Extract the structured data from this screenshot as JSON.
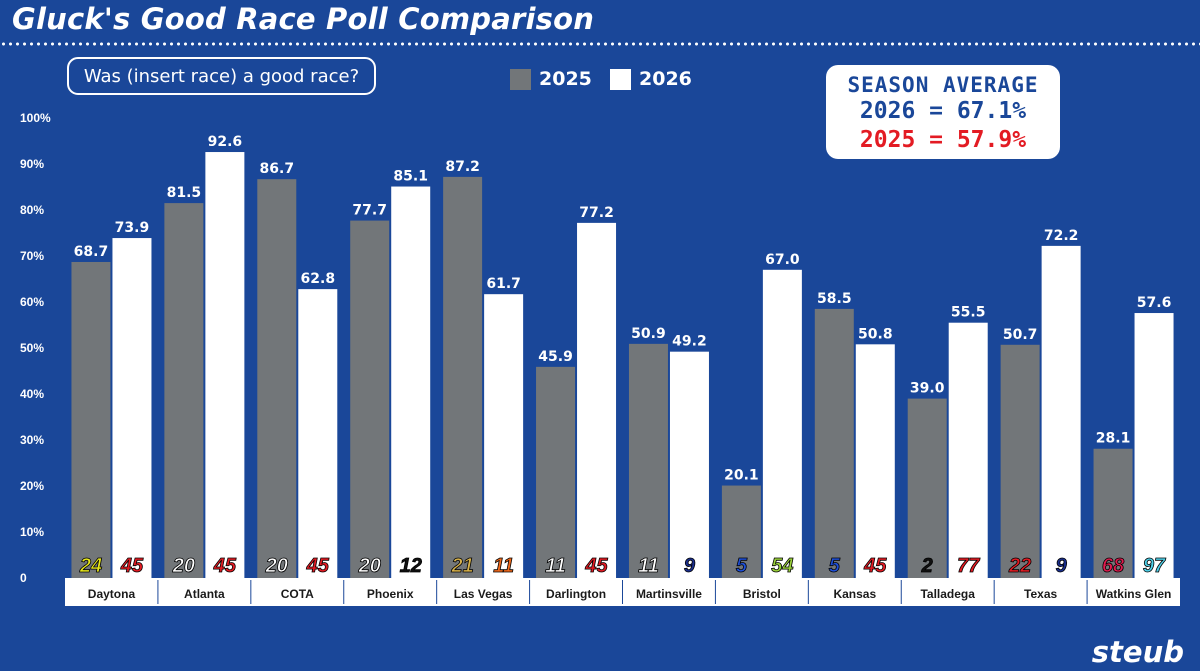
{
  "header": {
    "title": "Gluck's Good Race Poll Comparison"
  },
  "question": "Was (insert race) a good race?",
  "legend": [
    {
      "name": "2025",
      "color": "#727679"
    },
    {
      "name": "2026",
      "color": "#ffffff"
    }
  ],
  "season_average": {
    "heading": "SEASON AVERAGE",
    "line_2026": "2026 = 67.1%",
    "line_2025": "2025 = 57.9%",
    "color_2026": "#1a4799",
    "color_2025": "#e31b23"
  },
  "brand": "steub",
  "chart_data": {
    "type": "bar",
    "title": "Gluck's Good Race Poll Comparison",
    "ylim": [
      0,
      100
    ],
    "yticks": [
      "0",
      "10%",
      "20%",
      "30%",
      "40%",
      "50%",
      "60%",
      "70%",
      "80%",
      "90%",
      "100%"
    ],
    "categories": [
      "Daytona",
      "Atlanta",
      "COTA",
      "Phoenix",
      "Las Vegas",
      "Darlington",
      "Martinsville",
      "Bristol",
      "Kansas",
      "Talladega",
      "Texas",
      "Watkins Glen"
    ],
    "series": [
      {
        "name": "2025",
        "color": "#727679",
        "values": [
          68.7,
          81.5,
          86.7,
          77.7,
          87.2,
          45.9,
          50.9,
          20.1,
          58.5,
          39.0,
          50.7,
          28.1
        ]
      },
      {
        "name": "2026",
        "color": "#ffffff",
        "values": [
          73.9,
          92.6,
          62.8,
          85.1,
          61.7,
          77.2,
          49.2,
          67.0,
          50.8,
          55.5,
          72.2,
          57.6
        ]
      }
    ],
    "value_labels_2025": [
      "68.7",
      "81.5",
      "86.7",
      "77.7",
      "87.2",
      "45.9",
      "50.9",
      "20.1",
      "58.5",
      "39.0",
      "50.7",
      "28.1"
    ],
    "value_labels_2026": [
      "73.9",
      "92.6",
      "62.8",
      "85.1",
      "61.7",
      "77.2",
      "49.2",
      "67.0",
      "50.8",
      "55.5",
      "72.2",
      "57.6"
    ],
    "winner_numbers_2025": [
      {
        "num": "24",
        "color": "#e8e81c"
      },
      {
        "num": "20",
        "color": "#ffffff"
      },
      {
        "num": "20",
        "color": "#ffffff"
      },
      {
        "num": "20",
        "color": "#ffffff"
      },
      {
        "num": "21",
        "color": "#d8b24a"
      },
      {
        "num": "11",
        "color": "#ffffff"
      },
      {
        "num": "11",
        "color": "#ffffff"
      },
      {
        "num": "5",
        "color": "#1e4fd8"
      },
      {
        "num": "5",
        "color": "#1e4fd8"
      },
      {
        "num": "2",
        "color": "#111111"
      },
      {
        "num": "22",
        "color": "#e31b23"
      },
      {
        "num": "68",
        "color": "#e31b4f"
      }
    ],
    "winner_numbers_2026": [
      {
        "num": "45",
        "color": "#e31b23"
      },
      {
        "num": "45",
        "color": "#e31b23"
      },
      {
        "num": "45",
        "color": "#e31b23"
      },
      {
        "num": "12",
        "color": "#111111"
      },
      {
        "num": "11",
        "color": "#f26a1b"
      },
      {
        "num": "45",
        "color": "#e31b23"
      },
      {
        "num": "9",
        "color": "#1a2e8c"
      },
      {
        "num": "54",
        "color": "#9ad13b"
      },
      {
        "num": "45",
        "color": "#e31b23"
      },
      {
        "num": "77",
        "color": "#e31b23"
      },
      {
        "num": "9",
        "color": "#1a2e8c"
      },
      {
        "num": "97",
        "color": "#4fd0e8"
      }
    ],
    "grid": false,
    "legend_position": "top-center"
  }
}
